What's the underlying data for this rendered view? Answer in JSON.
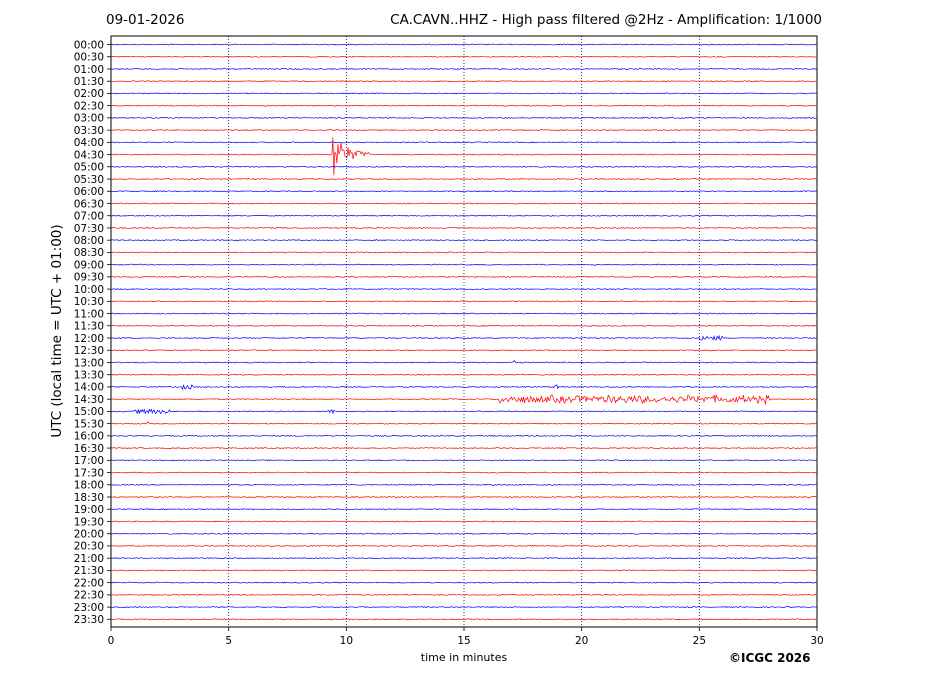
{
  "header": {
    "date": "09-01-2026",
    "title": "CA.CAVN..HHZ - High pass filtered @2Hz - Amplification: 1/1000"
  },
  "footer": {
    "copyright": "©ICGC 2026"
  },
  "chart_data": {
    "type": "line",
    "subtype": "seismogram helicorder",
    "xlabel": "time in minutes",
    "ylabel": "UTC (local time = UTC + 01:00)",
    "xlim": [
      0,
      30
    ],
    "x_ticks": [
      0,
      5,
      10,
      15,
      20,
      25,
      30
    ],
    "x_grid": "dotted vertical at 5,10,15,20,25",
    "trace_colors": [
      "#0000ff",
      "#ff0000"
    ],
    "rows": [
      "00:00",
      "00:30",
      "01:00",
      "01:30",
      "02:00",
      "02:30",
      "03:00",
      "03:30",
      "04:00",
      "04:30",
      "05:00",
      "05:30",
      "06:00",
      "06:30",
      "07:00",
      "07:30",
      "08:00",
      "08:30",
      "09:00",
      "09:30",
      "10:00",
      "10:30",
      "11:00",
      "11:30",
      "12:00",
      "12:30",
      "13:00",
      "13:30",
      "14:00",
      "14:30",
      "15:00",
      "15:30",
      "16:00",
      "16:30",
      "17:00",
      "17:30",
      "18:00",
      "18:30",
      "19:00",
      "19:30",
      "20:00",
      "20:30",
      "21:00",
      "21:30",
      "22:00",
      "22:30",
      "23:00",
      "23:30"
    ],
    "events": [
      {
        "row": "04:30",
        "start_min": 9.4,
        "end_min": 11.0,
        "amplitude": "large",
        "color": "#0000ff"
      },
      {
        "row": "14:30",
        "start_min": 16.5,
        "end_min": 28.0,
        "amplitude": "moderate",
        "color": "#0000ff"
      },
      {
        "row": "13:00",
        "start_min": 17.0,
        "end_min": 17.2,
        "amplitude": "small",
        "color": "#ff0000"
      },
      {
        "row": "14:00",
        "start_min": 3.0,
        "end_min": 3.5,
        "amplitude": "small",
        "color": "#ff0000"
      },
      {
        "row": "14:00",
        "start_min": 18.8,
        "end_min": 19.0,
        "amplitude": "small",
        "color": "#ff0000"
      },
      {
        "row": "15:00",
        "start_min": 1.0,
        "end_min": 2.5,
        "amplitude": "small",
        "color": "#ff0000"
      },
      {
        "row": "15:00",
        "start_min": 9.2,
        "end_min": 9.5,
        "amplitude": "small",
        "color": "#ff0000"
      },
      {
        "row": "15:30",
        "start_min": 1.5,
        "end_min": 1.7,
        "amplitude": "small",
        "color": "#0000ff"
      },
      {
        "row": "12:00",
        "start_min": 25.0,
        "end_min": 26.0,
        "amplitude": "small",
        "color": "#ff0000"
      }
    ]
  }
}
